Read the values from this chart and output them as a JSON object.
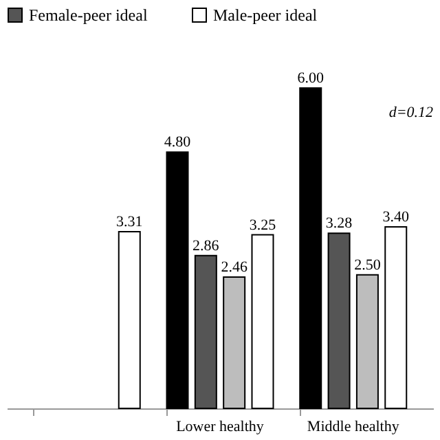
{
  "chart_data": {
    "type": "bar",
    "categories": [
      null,
      "Lower healthy",
      "Middle healthy"
    ],
    "series": [
      {
        "color": "#000000",
        "values": [
          null,
          4.8,
          6.0
        ],
        "value_labels": [
          null,
          "4.80",
          "6.00"
        ]
      },
      {
        "name": "Female-peer ideal",
        "color": "#555555",
        "values": [
          null,
          2.86,
          3.28
        ],
        "value_labels": [
          null,
          "2.86",
          "3.28"
        ]
      },
      {
        "color": "#bdbdbd",
        "values": [
          null,
          2.46,
          2.5
        ],
        "value_labels": [
          null,
          "2.46",
          "2.50"
        ]
      },
      {
        "name": "Male-peer ideal",
        "color": "#ffffff",
        "values": [
          3.31,
          3.25,
          3.4
        ],
        "value_labels": [
          "3.31",
          "3.25",
          "3.40"
        ]
      }
    ],
    "legend": "top",
    "grid": false,
    "annotations": [
      "d=0.12"
    ]
  }
}
